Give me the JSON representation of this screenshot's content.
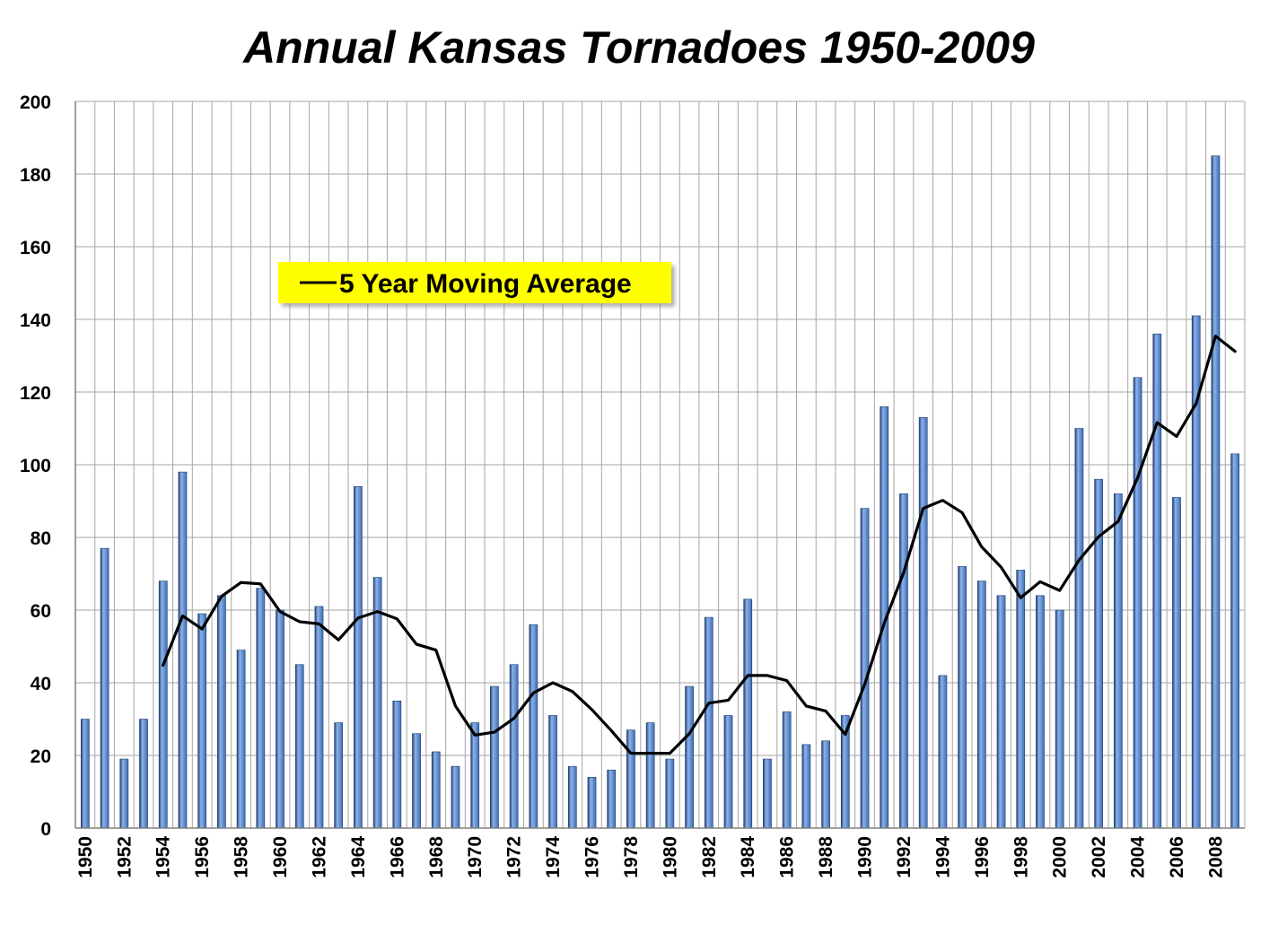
{
  "chart_data": {
    "type": "bar",
    "title": "Annual Kansas Tornadoes 1950-2009",
    "xlabel": "",
    "ylabel": "",
    "ylim": [
      0,
      200
    ],
    "yticks": [
      "0",
      "20",
      "40",
      "60",
      "80",
      "100",
      "120",
      "140",
      "160",
      "180",
      "200"
    ],
    "grid": true,
    "categories": [
      1950,
      1951,
      1952,
      1953,
      1954,
      1955,
      1956,
      1957,
      1958,
      1959,
      1960,
      1961,
      1962,
      1963,
      1964,
      1965,
      1966,
      1967,
      1968,
      1969,
      1970,
      1971,
      1972,
      1973,
      1974,
      1975,
      1976,
      1977,
      1978,
      1979,
      1980,
      1981,
      1982,
      1983,
      1984,
      1985,
      1986,
      1987,
      1988,
      1989,
      1990,
      1991,
      1992,
      1993,
      1994,
      1995,
      1996,
      1997,
      1998,
      1999,
      2000,
      2001,
      2002,
      2003,
      2004,
      2005,
      2006,
      2007,
      2008,
      2009
    ],
    "xtick_labels": [
      "1950",
      "1952",
      "1954",
      "1956",
      "1958",
      "1960",
      "1962",
      "1964",
      "1966",
      "1968",
      "1970",
      "1972",
      "1974",
      "1976",
      "1978",
      "1980",
      "1982",
      "1984",
      "1986",
      "1988",
      "1990",
      "1992",
      "1994",
      "1996",
      "1998",
      "2000",
      "2002",
      "2004",
      "2006",
      "2008"
    ],
    "values": [
      30,
      77,
      19,
      30,
      68,
      98,
      59,
      64,
      49,
      66,
      60,
      45,
      61,
      29,
      94,
      69,
      35,
      26,
      21,
      17,
      29,
      39,
      45,
      56,
      31,
      17,
      14,
      16,
      27,
      29,
      19,
      39,
      58,
      31,
      63,
      19,
      32,
      23,
      24,
      31,
      88,
      116,
      92,
      113,
      42,
      72,
      68,
      64,
      71,
      64,
      60,
      110,
      96,
      92,
      124,
      136,
      91,
      141,
      185,
      103
    ],
    "moving_average": {
      "name": "5 Year Moving Average",
      "start_year": 1954,
      "values": [
        44.8,
        58.4,
        54.8,
        63.8,
        67.6,
        67.2,
        59.6,
        56.8,
        56.2,
        51.8,
        57.8,
        59.6,
        57.6,
        50.6,
        49.0,
        33.6,
        25.6,
        26.4,
        30.2,
        37.2,
        40.0,
        37.6,
        32.6,
        26.8,
        20.6,
        20.6,
        20.6,
        26.0,
        34.4,
        35.2,
        42.0,
        42.0,
        40.6,
        33.6,
        32.2,
        25.8,
        39.6,
        56.4,
        70.4,
        88.0,
        90.2,
        86.8,
        77.4,
        71.8,
        63.4,
        67.8,
        65.4,
        73.8,
        80.2,
        84.4,
        96.4,
        111.6,
        107.8,
        116.8,
        135.4,
        131.2
      ]
    },
    "legend": {
      "label": "5 Year Moving Average",
      "placement": "upper-left",
      "background": "#ffff00"
    },
    "colors": {
      "bar": "#3d6db5",
      "bar_highlight": "#8db3e8",
      "bar_dark": "#1f3f72",
      "line": "#000000",
      "grid": "#a6a6a6",
      "legend_background": "#ffff00"
    }
  }
}
